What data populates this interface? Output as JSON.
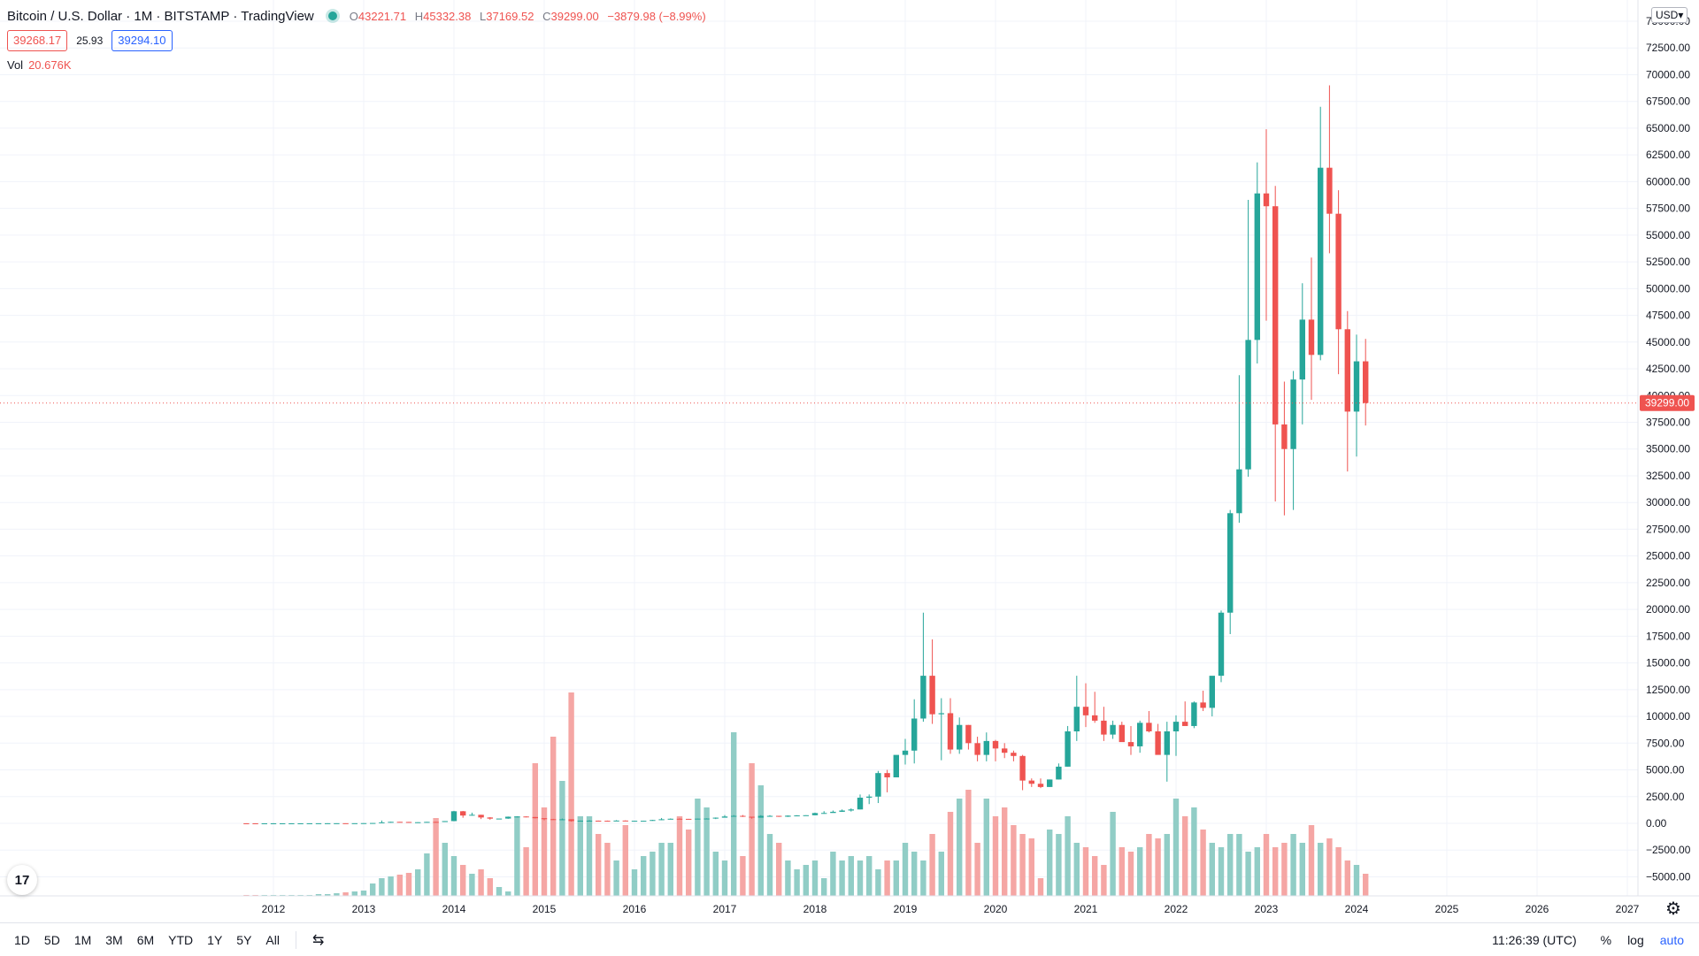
{
  "header": {
    "title": "Bitcoin / U.S. Dollar · 1M · BITSTAMP · TradingView",
    "ohlc": {
      "o_label": "O",
      "o": "43221.71",
      "h_label": "H",
      "h": "45332.38",
      "l_label": "L",
      "l": "37169.52",
      "c_label": "C",
      "c": "39299.00",
      "change": "−3879.98 (−8.99%)"
    },
    "bid": "39268.17",
    "spread": "25.93",
    "ask": "39294.10",
    "vol_label": "Vol",
    "vol_value": "20.676K"
  },
  "currency_button": "USD▾",
  "last_price_label": "39299.00",
  "logo_text": "17",
  "colors": {
    "up": "#26a69a",
    "down": "#ef5350",
    "up_vol": "#91cdc6",
    "down_vol": "#f5a6a4",
    "accent": "#2962ff",
    "grid": "#f0f3fa"
  },
  "bottom_bar": {
    "timeframes": [
      "1D",
      "5D",
      "1M",
      "3M",
      "6M",
      "YTD",
      "1Y",
      "5Y",
      "All"
    ],
    "date_range_icon": "calendar-range-icon",
    "clock": "11:26:39 (UTC)",
    "percent": "%",
    "log": "log",
    "auto": "auto"
  },
  "chart_data": {
    "type": "candlestick",
    "symbol": "Bitcoin / U.S. Dollar",
    "interval": "1M",
    "x_tick_labels": [
      "2012",
      "2013",
      "2014",
      "2015",
      "2016",
      "2017",
      "2018",
      "2019",
      "2020",
      "2021",
      "2022",
      "2023",
      "2024",
      "2025",
      "2026",
      "2027"
    ],
    "y_tick_labels": [
      "75000.00",
      "72500.00",
      "70000.00",
      "67500.00",
      "65000.00",
      "62500.00",
      "60000.00",
      "57500.00",
      "55000.00",
      "52500.00",
      "50000.00",
      "47500.00",
      "45000.00",
      "42500.00",
      "40000.00",
      "37500.00",
      "35000.00",
      "32500.00",
      "30000.00",
      "27500.00",
      "25000.00",
      "22500.00",
      "20000.00",
      "17500.00",
      "15000.00",
      "12500.00",
      "10000.00",
      "7500.00",
      "5000.00",
      "2500.00",
      "0.00",
      "−2500.00",
      "−5000.00"
    ],
    "ylim": [
      -6500,
      76500
    ],
    "xlim": [
      2011.2,
      2027.2
    ],
    "grid": true,
    "candles_ohlc": [
      [
        2011.7,
        6,
        7,
        4,
        5
      ],
      [
        2011.8,
        5,
        5,
        2,
        3
      ],
      [
        2011.9,
        3,
        5,
        2,
        5
      ],
      [
        2012.0,
        5,
        7,
        4,
        5
      ],
      [
        2012.1,
        5,
        5,
        4,
        5
      ],
      [
        2012.2,
        5,
        6,
        4,
        5
      ],
      [
        2012.3,
        5,
        5,
        4,
        5
      ],
      [
        2012.4,
        5,
        7,
        5,
        7
      ],
      [
        2012.5,
        7,
        9,
        6,
        9
      ],
      [
        2012.6,
        9,
        16,
        8,
        10
      ],
      [
        2012.7,
        10,
        13,
        10,
        12
      ],
      [
        2012.8,
        12,
        12,
        10,
        11
      ],
      [
        2012.9,
        11,
        14,
        11,
        13
      ],
      [
        2013.0,
        13,
        21,
        13,
        20
      ],
      [
        2013.1,
        20,
        35,
        20,
        33
      ],
      [
        2013.2,
        33,
        266,
        50,
        93
      ],
      [
        2013.3,
        93,
        147,
        70,
        139
      ],
      [
        2013.4,
        139,
        140,
        107,
        129
      ],
      [
        2013.5,
        129,
        130,
        65,
        97
      ],
      [
        2013.6,
        97,
        110,
        87,
        106
      ],
      [
        2013.7,
        106,
        139,
        98,
        135
      ],
      [
        2013.8,
        135,
        140,
        107,
        125
      ],
      [
        2013.9,
        125,
        211,
        120,
        211
      ],
      [
        2014.0,
        211,
        1163,
        200,
        1130
      ],
      [
        2014.1,
        1130,
        1160,
        520,
        730
      ],
      [
        2014.2,
        730,
        1000,
        730,
        800
      ],
      [
        2014.3,
        800,
        800,
        400,
        550
      ],
      [
        2014.4,
        550,
        580,
        340,
        440
      ],
      [
        2014.5,
        440,
        450,
        440,
        447
      ],
      [
        2014.6,
        447,
        640,
        420,
        620
      ],
      [
        2014.7,
        620,
        660,
        560,
        640
      ],
      [
        2014.8,
        640,
        650,
        560,
        590
      ],
      [
        2014.9,
        590,
        600,
        460,
        480
      ],
      [
        2015.0,
        480,
        480,
        280,
        390
      ],
      [
        2015.1,
        390,
        420,
        320,
        340
      ],
      [
        2015.2,
        340,
        450,
        300,
        380
      ],
      [
        2015.3,
        380,
        380,
        160,
        210
      ],
      [
        2015.4,
        210,
        260,
        180,
        250
      ],
      [
        2015.5,
        250,
        300,
        210,
        250
      ],
      [
        2015.6,
        250,
        260,
        230,
        240
      ],
      [
        2015.7,
        240,
        260,
        220,
        230
      ],
      [
        2015.8,
        230,
        300,
        230,
        260
      ],
      [
        2015.9,
        260,
        280,
        200,
        230
      ],
      [
        2016.0,
        230,
        240,
        210,
        240
      ],
      [
        2016.1,
        240,
        250,
        230,
        240
      ],
      [
        2016.2,
        240,
        330,
        240,
        310
      ],
      [
        2016.3,
        310,
        500,
        300,
        380
      ],
      [
        2016.4,
        380,
        460,
        360,
        430
      ],
      [
        2016.5,
        430,
        460,
        400,
        420
      ],
      [
        2016.6,
        420,
        420,
        400,
        410
      ],
      [
        2016.7,
        410,
        440,
        400,
        440
      ],
      [
        2016.8,
        440,
        470,
        430,
        450
      ],
      [
        2016.9,
        450,
        550,
        400,
        530
      ],
      [
        2017.0,
        530,
        780,
        600,
        640
      ],
      [
        2017.1,
        640,
        770,
        650,
        700
      ],
      [
        2017.2,
        700,
        780,
        600,
        620
      ],
      [
        2017.3,
        620,
        620,
        430,
        530
      ],
      [
        2017.4,
        530,
        770,
        530,
        700
      ],
      [
        2017.5,
        700,
        770,
        690,
        700
      ],
      [
        2017.6,
        700,
        700,
        600,
        620
      ],
      [
        2017.7,
        620,
        740,
        600,
        720
      ],
      [
        2017.8,
        720,
        760,
        700,
        740
      ],
      [
        2017.9,
        740,
        760,
        710,
        760
      ],
      [
        2018.0,
        760,
        1000,
        750,
        960
      ],
      [
        2018.1,
        960,
        1140,
        900,
        970
      ],
      [
        2018.2,
        970,
        1200,
        1000,
        1080
      ],
      [
        2018.3,
        1080,
        1300,
        1070,
        1200
      ],
      [
        2018.4,
        1200,
        1400,
        1100,
        1300
      ],
      [
        2018.5,
        1300,
        2700,
        1300,
        2400
      ],
      [
        2018.6,
        2400,
        2700,
        1800,
        2500
      ],
      [
        2018.7,
        2500,
        4900,
        1900,
        4700
      ],
      [
        2018.8,
        4700,
        5000,
        2900,
        4300
      ],
      [
        2018.9,
        4300,
        6100,
        4300,
        6400
      ],
      [
        2019.0,
        6400,
        7900,
        5500,
        6800
      ],
      [
        2019.1,
        6800,
        11600,
        5600,
        9800
      ],
      [
        2019.2,
        9800,
        19700,
        9500,
        13800
      ],
      [
        2019.3,
        13800,
        17200,
        9300,
        10200
      ],
      [
        2019.4,
        10200,
        11700,
        5900,
        10300
      ],
      [
        2019.5,
        10300,
        11700,
        6500,
        6900
      ],
      [
        2019.6,
        6900,
        9900,
        6500,
        9200
      ],
      [
        2019.7,
        9200,
        9200,
        6900,
        7500
      ],
      [
        2019.8,
        7500,
        8100,
        5800,
        6400
      ],
      [
        2019.9,
        6400,
        8500,
        5800,
        7700
      ],
      [
        2020.0,
        7700,
        7800,
        5800,
        7000
      ],
      [
        2020.1,
        7000,
        7500,
        6100,
        6600
      ],
      [
        2020.2,
        6600,
        6800,
        5800,
        6300
      ],
      [
        2020.3,
        6300,
        6400,
        3100,
        4000
      ],
      [
        2020.4,
        4000,
        4200,
        3400,
        3700
      ],
      [
        2020.5,
        3700,
        4200,
        3300,
        3400
      ],
      [
        2020.6,
        3400,
        4100,
        3400,
        4100
      ],
      [
        2020.7,
        4100,
        5600,
        4100,
        5300
      ],
      [
        2020.8,
        5300,
        9100,
        5300,
        8600
      ],
      [
        2020.9,
        8600,
        13800,
        7700,
        10900
      ],
      [
        2021.0,
        10900,
        13100,
        9000,
        10100
      ],
      [
        2021.1,
        10100,
        12300,
        9400,
        9600
      ],
      [
        2021.2,
        9600,
        10900,
        7700,
        8300
      ],
      [
        2021.3,
        8300,
        9600,
        7900,
        9200
      ],
      [
        2021.4,
        9200,
        9500,
        8100,
        7600
      ],
      [
        2021.5,
        7600,
        9100,
        6400,
        7200
      ],
      [
        2021.6,
        7200,
        9600,
        6600,
        9400
      ],
      [
        2021.7,
        9400,
        10500,
        8500,
        8600
      ],
      [
        2021.8,
        8600,
        9300,
        6500,
        6400
      ],
      [
        2021.9,
        6400,
        9500,
        3900,
        8600
      ],
      [
        2022.0,
        8600,
        10100,
        6300,
        9500
      ],
      [
        2022.1,
        9500,
        11400,
        9300,
        9100
      ],
      [
        2022.2,
        9100,
        11400,
        8900,
        11300
      ],
      [
        2022.3,
        11300,
        12400,
        10500,
        10800
      ],
      [
        2022.4,
        10800,
        12400,
        10000,
        13800
      ],
      [
        2022.5,
        13800,
        19900,
        13200,
        19700
      ],
      [
        2022.6,
        19700,
        29300,
        17700,
        29000
      ],
      [
        2022.7,
        29000,
        41900,
        28100,
        33100
      ],
      [
        2022.8,
        33100,
        58300,
        32400,
        45200
      ],
      [
        2022.9,
        45200,
        61800,
        43000,
        58900
      ],
      [
        2023.0,
        58900,
        64900,
        47000,
        57700
      ],
      [
        2023.1,
        57700,
        59600,
        30100,
        37300
      ],
      [
        2023.2,
        37300,
        41300,
        28800,
        35000
      ],
      [
        2023.3,
        35000,
        42300,
        29300,
        41500
      ],
      [
        2023.4,
        41500,
        50500,
        37300,
        47100
      ],
      [
        2023.5,
        47100,
        52900,
        39600,
        43800
      ],
      [
        2023.6,
        43800,
        67000,
        43300,
        61300
      ],
      [
        2023.7,
        61300,
        69000,
        53300,
        57000
      ],
      [
        2023.8,
        57000,
        59200,
        42000,
        46200
      ],
      [
        2023.9,
        46200,
        47900,
        32900,
        38500
      ],
      [
        2024.0,
        38500,
        45700,
        34300,
        43200
      ],
      [
        2024.1,
        43200,
        45300,
        37200,
        39300
      ]
    ],
    "volume_series": "monthly volume histogram colored by candle direction",
    "last_price": 39299.0,
    "last_price_line": "dotted horizontal line"
  }
}
